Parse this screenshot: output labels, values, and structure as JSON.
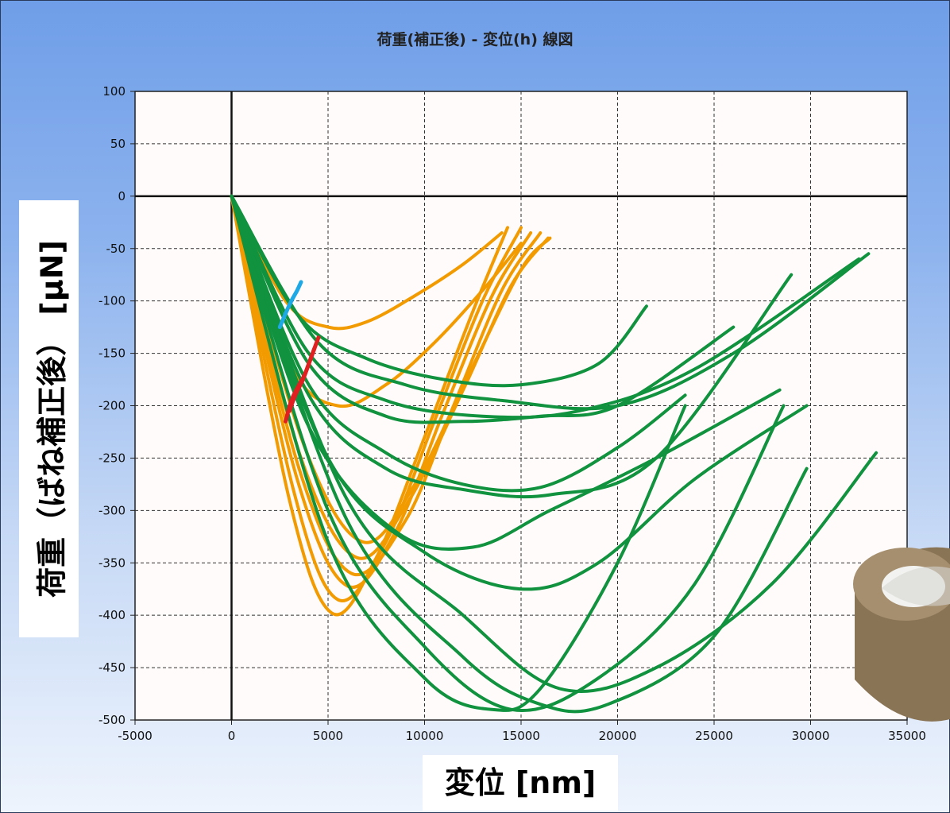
{
  "chart_data": {
    "type": "line",
    "title": "荷重(補正後) - 変位(h) 線図",
    "xlabel": "変位 [nm]",
    "ylabel": "荷重（ばね補正後） [μN]",
    "xlim": [
      -5000,
      35000
    ],
    "ylim": [
      -500,
      100
    ],
    "xticks": [
      "-5000",
      "0",
      "5000",
      "10000",
      "15000",
      "20000",
      "25000",
      "30000",
      "35000"
    ],
    "yticks": [
      "100",
      "50",
      "0",
      "-50",
      "-100",
      "-150",
      "-200",
      "-250",
      "-300",
      "-350",
      "-400",
      "-450",
      "-500"
    ],
    "grid": true,
    "colors": {
      "orange": "#f29b00",
      "green": "#10923e",
      "red": "#e02020",
      "blue": "#1ea8e6"
    },
    "series": [
      {
        "color": "orange",
        "x": [
          0,
          3000,
          5200,
          7500,
          10000,
          12500,
          14300
        ],
        "y": [
          0,
          -290,
          -398,
          -345,
          -230,
          -110,
          -30
        ]
      },
      {
        "color": "orange",
        "x": [
          0,
          3200,
          5500,
          8000,
          10500,
          13000,
          15000
        ],
        "y": [
          0,
          -280,
          -385,
          -330,
          -215,
          -100,
          -30
        ]
      },
      {
        "color": "orange",
        "x": [
          0,
          3400,
          6000,
          8500,
          11000,
          13500,
          15500
        ],
        "y": [
          0,
          -270,
          -372,
          -320,
          -205,
          -95,
          -35
        ]
      },
      {
        "color": "orange",
        "x": [
          0,
          3500,
          6200,
          9000,
          11500,
          14000,
          16000
        ],
        "y": [
          0,
          -260,
          -360,
          -310,
          -200,
          -90,
          -35
        ]
      },
      {
        "color": "orange",
        "x": [
          0,
          3600,
          6500,
          9200,
          12000,
          14500,
          16400
        ],
        "y": [
          0,
          -250,
          -345,
          -290,
          -185,
          -85,
          -40
        ]
      },
      {
        "color": "orange",
        "x": [
          0,
          3800,
          6800,
          9500,
          12300,
          15000,
          16500
        ],
        "y": [
          0,
          -240,
          -330,
          -275,
          -170,
          -70,
          -40
        ]
      },
      {
        "color": "orange",
        "x": [
          0,
          3000,
          5500,
          8000,
          10500,
          13000,
          15000
        ],
        "y": [
          0,
          -160,
          -200,
          -180,
          -140,
          -90,
          -45
        ]
      },
      {
        "color": "orange",
        "x": [
          0,
          2800,
          5000,
          7000,
          9500,
          12000,
          14000
        ],
        "y": [
          0,
          -100,
          -125,
          -120,
          -95,
          -65,
          -35
        ]
      },
      {
        "color": "green",
        "x": [
          0,
          5000,
          10000,
          13500,
          16000,
          20000,
          23500
        ],
        "y": [
          0,
          -330,
          -460,
          -490,
          -470,
          -350,
          -200
        ]
      },
      {
        "color": "green",
        "x": [
          0,
          5000,
          10000,
          14500,
          19000,
          24000,
          28600
        ],
        "y": [
          0,
          -300,
          -430,
          -490,
          -460,
          -370,
          -200
        ]
      },
      {
        "color": "green",
        "x": [
          0,
          6000,
          12000,
          16000,
          19500,
          25000,
          29800
        ],
        "y": [
          0,
          -310,
          -440,
          -485,
          -485,
          -420,
          -260
        ]
      },
      {
        "color": "green",
        "x": [
          0,
          6000,
          12000,
          17000,
          22000,
          28000,
          33400
        ],
        "y": [
          0,
          -290,
          -400,
          -470,
          -450,
          -370,
          -245
        ]
      },
      {
        "color": "green",
        "x": [
          0,
          5000,
          10000,
          15000,
          19000,
          24000,
          29800
        ],
        "y": [
          0,
          -250,
          -340,
          -375,
          -350,
          -270,
          -200
        ]
      },
      {
        "color": "green",
        "x": [
          0,
          4000,
          8500,
          12500,
          16500,
          22000,
          28400
        ],
        "y": [
          0,
          -220,
          -320,
          -335,
          -300,
          -250,
          -185
        ]
      },
      {
        "color": "green",
        "x": [
          0,
          4000,
          8000,
          12000,
          16000,
          20000,
          23500
        ],
        "y": [
          0,
          -180,
          -245,
          -275,
          -278,
          -240,
          -190
        ]
      },
      {
        "color": "green",
        "x": [
          0,
          4000,
          8000,
          12000,
          16500,
          22000,
          29000
        ],
        "y": [
          0,
          -190,
          -260,
          -280,
          -285,
          -250,
          -75
        ]
      },
      {
        "color": "green",
        "x": [
          0,
          4000,
          8000,
          12000,
          16000,
          20000,
          26000
        ],
        "y": [
          0,
          -160,
          -210,
          -215,
          -210,
          -200,
          -125
        ]
      },
      {
        "color": "green",
        "x": [
          0,
          4000,
          8000,
          13000,
          18000,
          24000,
          32500
        ],
        "y": [
          0,
          -150,
          -195,
          -210,
          -205,
          -165,
          -60
        ]
      },
      {
        "color": "green",
        "x": [
          0,
          4500,
          9000,
          14000,
          20000,
          26000,
          33000
        ],
        "y": [
          0,
          -140,
          -180,
          -195,
          -200,
          -150,
          -55
        ]
      },
      {
        "color": "green",
        "x": [
          0,
          3500,
          7000,
          11000,
          15000,
          19000,
          21500
        ],
        "y": [
          0,
          -115,
          -155,
          -175,
          -180,
          -160,
          -105
        ]
      },
      {
        "color": "red",
        "x": [
          2800,
          3100,
          3500,
          3800,
          4200,
          4500
        ],
        "y": [
          -215,
          -195,
          -180,
          -170,
          -150,
          -135
        ]
      },
      {
        "color": "red",
        "x": [
          3000,
          3300,
          3700,
          4000,
          4300
        ],
        "y": [
          -205,
          -190,
          -175,
          -160,
          -145
        ]
      },
      {
        "color": "blue",
        "x": [
          2500,
          2800,
          3100,
          3400,
          3600
        ],
        "y": [
          -125,
          -112,
          -100,
          -90,
          -82
        ]
      }
    ]
  }
}
